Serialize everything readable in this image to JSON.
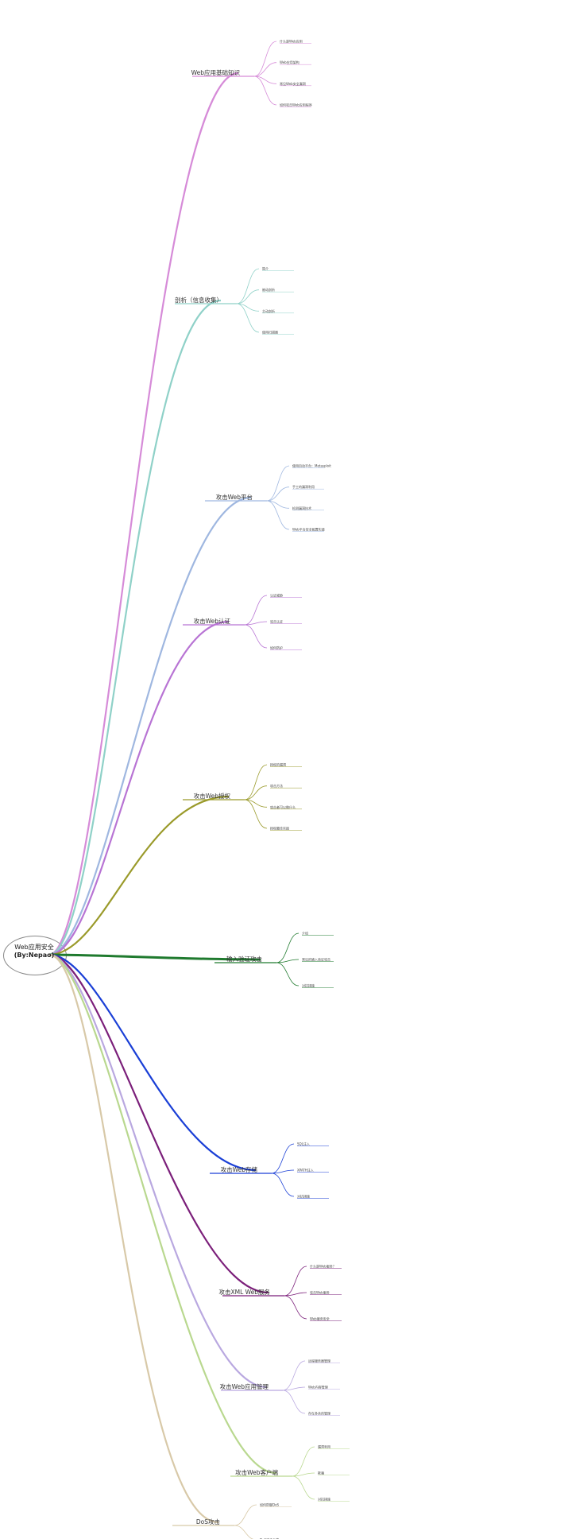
{
  "root": {
    "line1": "Web应用安全",
    "line2": "(By:Nepao)"
  },
  "branches": [
    {
      "label": "Web应用基础知识",
      "color": "#d68bd8",
      "leaves": [
        "什么是Web应用",
        "Web应用架构",
        "常见Web安全漏洞",
        "如何攻击Web应用程序"
      ]
    },
    {
      "label": "剖析（信息收集）",
      "color": "#8fd1c8",
      "leaves": [
        "简介",
        "被动剖析",
        "主动剖析",
        "使用扫描器"
      ]
    },
    {
      "label": "攻击Web平台",
      "color": "#9fb7e0",
      "leaves": [
        "使用自动平台：Metasploit",
        "手工的漏洞利用",
        "检测漏洞技术",
        "Web平台安全配置实践"
      ]
    },
    {
      "label": "攻击Web认证",
      "color": "#b874d4",
      "leaves": [
        "认证威胁",
        "攻击认证",
        "如何防护"
      ]
    },
    {
      "label": "攻击Web授权",
      "color": "#9a9a2a",
      "leaves": [
        "授权的漏洞",
        "攻击方法",
        "攻击者可以做什么",
        "授权最佳实践"
      ]
    },
    {
      "label": "输入验证攻击",
      "color": "#1f7a2e",
      "leaves": [
        "介绍",
        "常见的输入验证攻击",
        "对抗措施"
      ]
    },
    {
      "label": "攻击Web存储",
      "color": "#1a3fd6",
      "leaves": [
        "SQL注入",
        "XPATH注入",
        "对抗措施"
      ]
    },
    {
      "label": "攻击XML Web服务",
      "color": "#7b1f7a",
      "leaves": [
        "什么是Web服务？",
        "攻击Web服务",
        "Web服务安全"
      ]
    },
    {
      "label": "攻击Web应用管理",
      "color": "#b9a8e0",
      "leaves": [
        "远程服务器管理",
        "Web内容管理",
        "存在多余的管理"
      ]
    },
    {
      "label": "攻击Web客户端",
      "color": "#b9d88f",
      "leaves": [
        "漏洞利用",
        "欺骗",
        "对抗措施"
      ]
    },
    {
      "label": "DoS攻击",
      "color": "#d8c9a8",
      "leaves": [
        "如何防御DoS",
        "DoS攻击分类"
      ]
    }
  ]
}
